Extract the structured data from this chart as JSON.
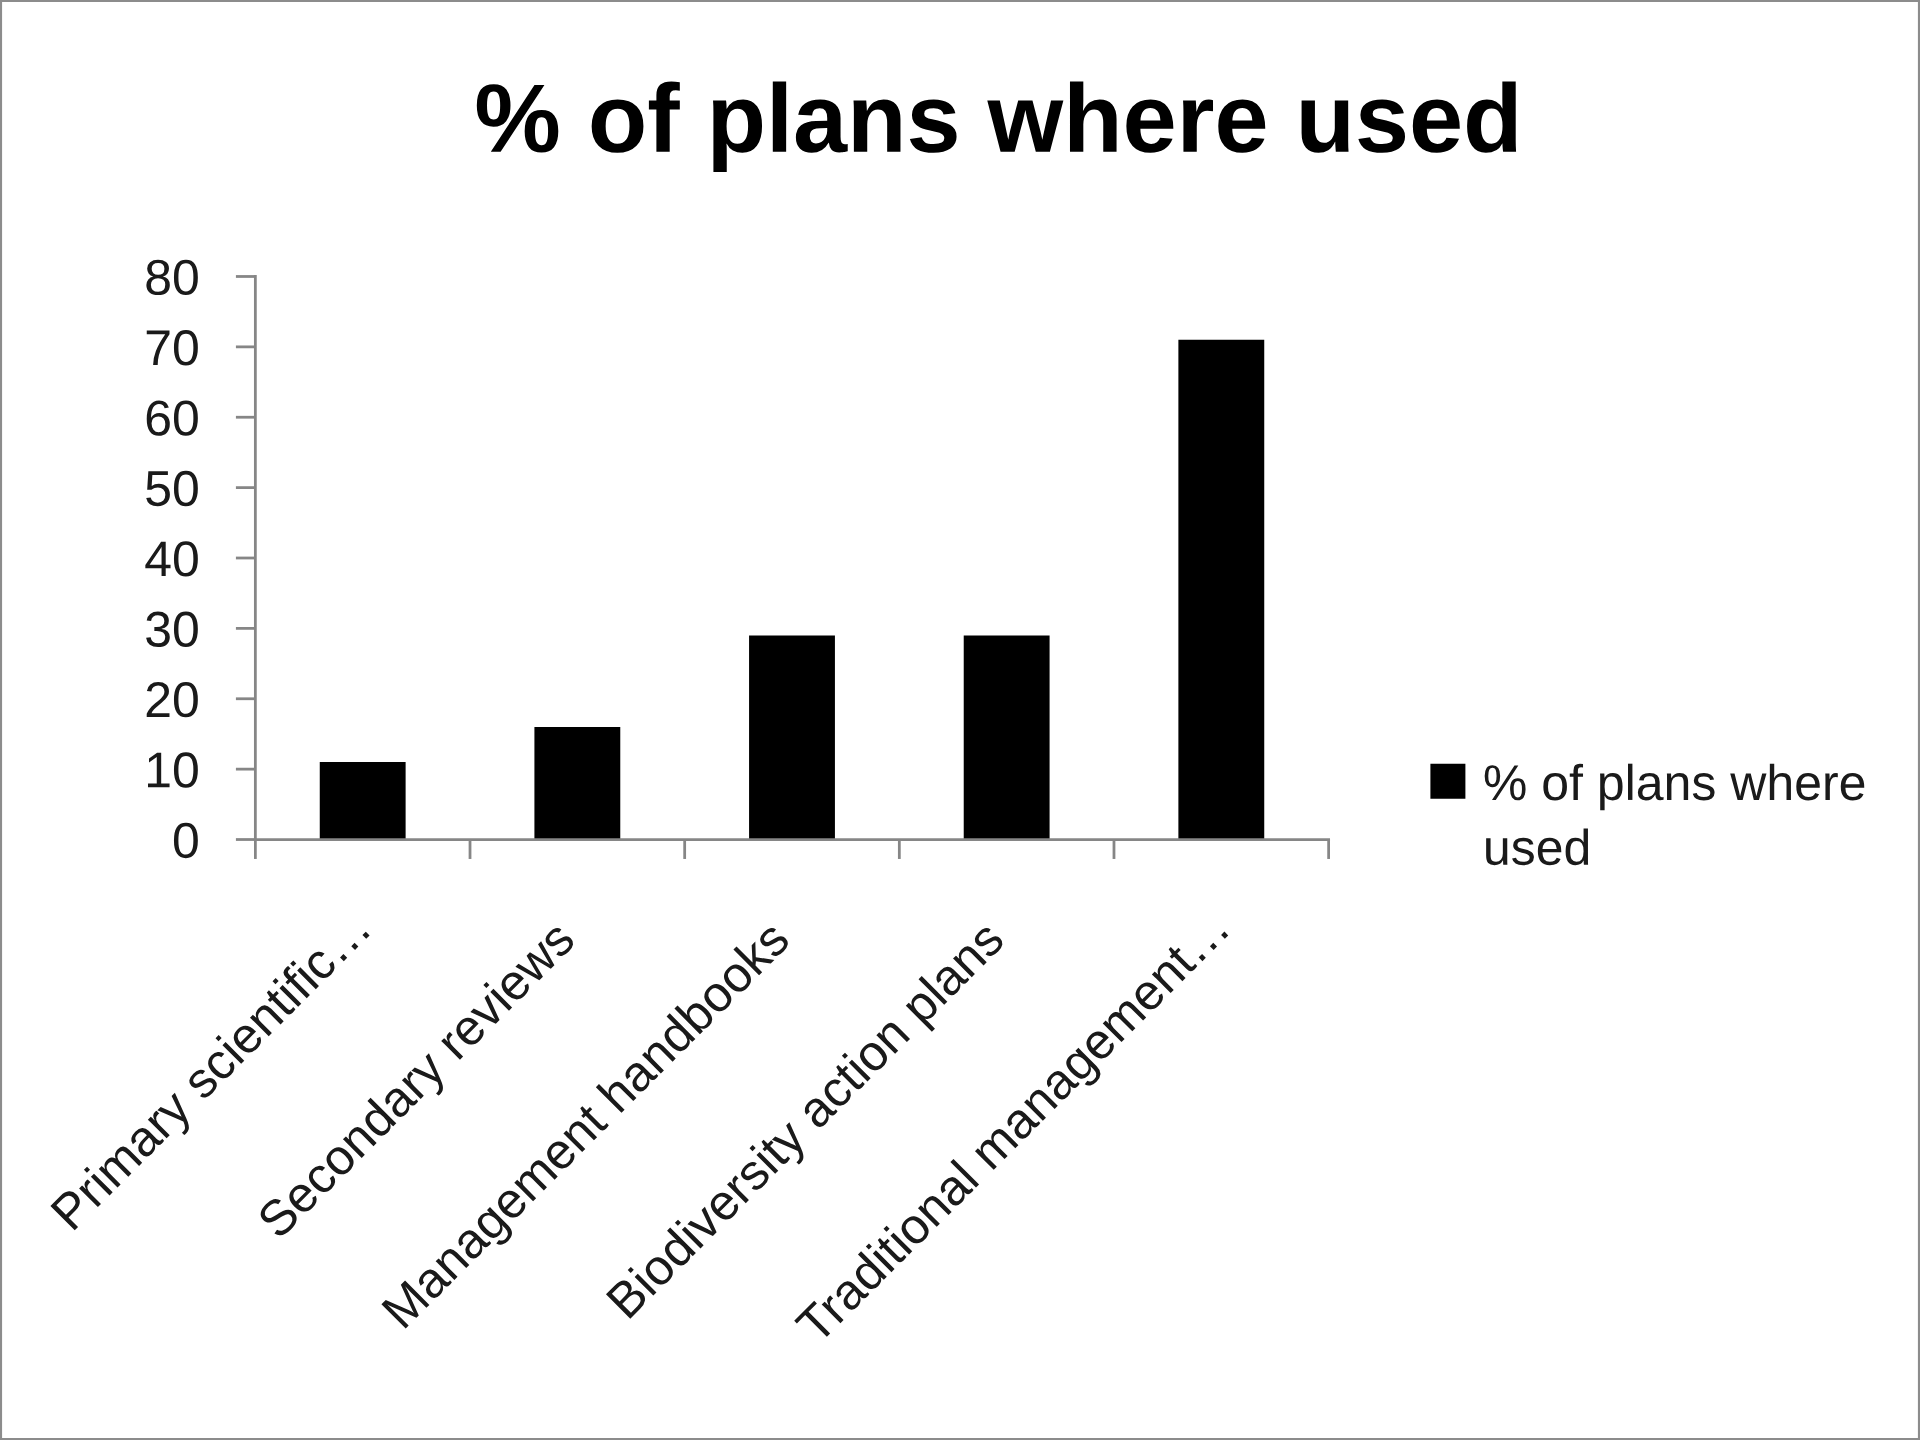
{
  "chart_data": {
    "type": "bar",
    "title": "% of plans where used",
    "categories": [
      "Primary scientific…",
      "Secondary reviews",
      "Management handbooks",
      "Biodiversity action plans",
      "Traditional management…"
    ],
    "series": [
      {
        "name": "% of plans where used",
        "color": "#000000",
        "values": [
          11,
          16,
          29,
          29,
          71
        ]
      }
    ],
    "ylim": [
      0,
      80
    ],
    "yticks": [
      0,
      10,
      20,
      30,
      40,
      50,
      60,
      70,
      80
    ],
    "grid": false,
    "legend": "right"
  }
}
